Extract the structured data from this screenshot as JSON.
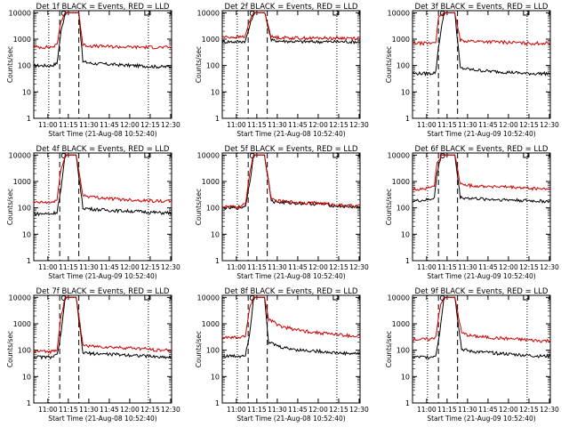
{
  "chart_data": [
    {
      "type": "line",
      "title": "Det 1f BLACK = Events, RED = LLD",
      "xlabel": "Start Time (21-Aug-08 10:52:40)",
      "ylabel": "Counts/sec",
      "x_ticks": [
        "11:00",
        "11:15",
        "11:30",
        "11:45",
        "12:00",
        "12:15",
        "12:30"
      ],
      "x_range_minutes": [
        -3,
        98
      ],
      "y_ticks": [
        "1",
        "10",
        "100",
        "1000",
        "10000"
      ],
      "y_range": [
        1,
        12000
      ],
      "y_scale": "log",
      "vlines_dotted": [
        8,
        81
      ],
      "vlines_dashed": [
        16,
        30
      ],
      "series": [
        {
          "color": "#000000",
          "x": [
            -3,
            10,
            14,
            17,
            20,
            30,
            33,
            40,
            55,
            70,
            80,
            90,
            98
          ],
          "y": [
            100,
            100,
            120,
            2000,
            10000,
            10000,
            140,
            120,
            110,
            100,
            95,
            90,
            90
          ]
        },
        {
          "color": "#cc0000",
          "x": [
            -3,
            10,
            14,
            17,
            20,
            30,
            33,
            40,
            55,
            70,
            80,
            90,
            98
          ],
          "y": [
            500,
            500,
            600,
            5000,
            10000,
            10000,
            600,
            550,
            520,
            500,
            500,
            490,
            490
          ]
        }
      ]
    },
    {
      "type": "line",
      "title": "Det 2f BLACK = Events, RED = LLD",
      "xlabel": "Start Time (21-Aug-08 10:52:40)",
      "ylabel": "Counts/sec",
      "x_ticks": [
        "11:00",
        "11:15",
        "11:30",
        "11:45",
        "12:00",
        "12:15",
        "12:30"
      ],
      "x_range_minutes": [
        -3,
        98
      ],
      "y_ticks": [
        "1",
        "10",
        "100",
        "1000",
        "10000"
      ],
      "y_range": [
        1,
        12000
      ],
      "y_scale": "log",
      "vlines_dotted": [
        8,
        81
      ],
      "vlines_dashed": [
        16,
        30
      ],
      "series": [
        {
          "color": "#000000",
          "x": [
            -3,
            10,
            14,
            17,
            20,
            28,
            33,
            40,
            55,
            70,
            80,
            90,
            98
          ],
          "y": [
            800,
            800,
            850,
            3000,
            10000,
            10000,
            900,
            850,
            800,
            800,
            800,
            800,
            800
          ]
        },
        {
          "color": "#cc0000",
          "x": [
            -3,
            10,
            14,
            17,
            20,
            28,
            33,
            40,
            55,
            70,
            80,
            90,
            98
          ],
          "y": [
            1200,
            1200,
            1300,
            5000,
            10000,
            10000,
            1200,
            1150,
            1100,
            1100,
            1100,
            1100,
            1100
          ]
        }
      ]
    },
    {
      "type": "line",
      "title": "Det 3f BLACK = Events, RED = LLD",
      "xlabel": "Start Time (21-Aug-09 10:52:40)",
      "ylabel": "Counts/sec",
      "x_ticks": [
        "11:00",
        "11:15",
        "11:30",
        "11:45",
        "12:00",
        "12:15",
        "12:30"
      ],
      "x_range_minutes": [
        -3,
        98
      ],
      "y_ticks": [
        "1",
        "10",
        "100",
        "1000",
        "10000"
      ],
      "y_range": [
        1,
        12000
      ],
      "y_scale": "log",
      "vlines_dotted": [
        8,
        81
      ],
      "vlines_dashed": [
        16,
        30
      ],
      "series": [
        {
          "color": "#000000",
          "x": [
            -3,
            10,
            14,
            16,
            20,
            28,
            32,
            40,
            55,
            70,
            80,
            90,
            98
          ],
          "y": [
            50,
            50,
            55,
            500,
            10000,
            10000,
            80,
            70,
            60,
            55,
            50,
            50,
            50
          ]
        },
        {
          "color": "#cc0000",
          "x": [
            -3,
            10,
            14,
            16,
            20,
            28,
            32,
            40,
            55,
            70,
            80,
            90,
            98
          ],
          "y": [
            700,
            700,
            800,
            6000,
            10000,
            10000,
            900,
            850,
            800,
            750,
            700,
            700,
            700
          ]
        }
      ]
    },
    {
      "type": "line",
      "title": "Det 4f BLACK = Events, RED = LLD",
      "xlabel": "Start Time (21-Aug-09 10:52:40)",
      "ylabel": "Counts/sec",
      "x_ticks": [
        "11:00",
        "11:15",
        "11:30",
        "11:45",
        "12:00",
        "12:15",
        "12:30"
      ],
      "x_range_minutes": [
        -3,
        98
      ],
      "y_ticks": [
        "1",
        "10",
        "100",
        "1000",
        "10000"
      ],
      "y_range": [
        1,
        12000
      ],
      "y_scale": "log",
      "vlines_dotted": [
        8,
        81
      ],
      "vlines_dashed": [
        16,
        30
      ],
      "series": [
        {
          "color": "#000000",
          "x": [
            -3,
            10,
            14,
            17,
            20,
            28,
            33,
            40,
            55,
            70,
            80,
            90,
            98
          ],
          "y": [
            60,
            60,
            70,
            500,
            10000,
            10000,
            100,
            90,
            80,
            75,
            70,
            65,
            65
          ]
        },
        {
          "color": "#cc0000",
          "x": [
            -3,
            10,
            14,
            17,
            20,
            28,
            33,
            40,
            55,
            70,
            80,
            90,
            98
          ],
          "y": [
            160,
            160,
            200,
            3000,
            10000,
            10000,
            300,
            260,
            220,
            200,
            190,
            180,
            180
          ]
        }
      ]
    },
    {
      "type": "line",
      "title": "Det 5f BLACK = Events, RED = LLD",
      "xlabel": "Start Time (21-Aug-08 10:52:40)",
      "ylabel": "Counts/sec",
      "x_ticks": [
        "11:00",
        "11:15",
        "11:30",
        "11:45",
        "12:00",
        "12:15",
        "12:30"
      ],
      "x_range_minutes": [
        -3,
        98
      ],
      "y_ticks": [
        "1",
        "10",
        "100",
        "1000",
        "10000"
      ],
      "y_range": [
        1,
        12000
      ],
      "y_scale": "log",
      "vlines_dotted": [
        8,
        81
      ],
      "vlines_dashed": [
        16,
        30
      ],
      "series": [
        {
          "color": "#000000",
          "x": [
            -3,
            10,
            14,
            17,
            20,
            28,
            33,
            40,
            55,
            70,
            80,
            90,
            98
          ],
          "y": [
            100,
            100,
            120,
            800,
            10000,
            10000,
            180,
            160,
            150,
            140,
            120,
            110,
            110
          ]
        },
        {
          "color": "#cc0000",
          "x": [
            -3,
            10,
            14,
            17,
            20,
            28,
            33,
            40,
            55,
            70,
            80,
            90,
            98
          ],
          "y": [
            110,
            110,
            140,
            2000,
            10000,
            10000,
            200,
            180,
            160,
            150,
            130,
            120,
            120
          ]
        }
      ]
    },
    {
      "type": "line",
      "title": "Det 6f BLACK = Events, RED = LLD",
      "xlabel": "Start Time (21-Aug-09 10:52:40)",
      "ylabel": "Counts/sec",
      "x_ticks": [
        "11:00",
        "11:15",
        "11:30",
        "11:45",
        "12:00",
        "12:15",
        "12:30"
      ],
      "x_range_minutes": [
        -3,
        98
      ],
      "y_ticks": [
        "1",
        "10",
        "100",
        "1000",
        "10000"
      ],
      "y_range": [
        1,
        12000
      ],
      "y_scale": "log",
      "vlines_dotted": [
        8,
        81
      ],
      "vlines_dashed": [
        16,
        30
      ],
      "series": [
        {
          "color": "#000000",
          "x": [
            -3,
            8,
            10,
            13,
            15,
            18,
            28,
            32,
            40,
            55,
            70,
            80,
            90,
            98
          ],
          "y": [
            180,
            200,
            210,
            250,
            2000,
            10000,
            10000,
            250,
            230,
            210,
            200,
            190,
            180,
            180
          ]
        },
        {
          "color": "#cc0000",
          "x": [
            -3,
            8,
            10,
            13,
            15,
            18,
            28,
            32,
            40,
            55,
            70,
            80,
            90,
            98
          ],
          "y": [
            500,
            550,
            600,
            700,
            5000,
            10000,
            10000,
            800,
            700,
            650,
            600,
            560,
            530,
            520
          ]
        }
      ]
    },
    {
      "type": "line",
      "title": "Det 7f BLACK = Events, RED = LLD",
      "xlabel": "Start Time (21-Aug-08 10:52:40)",
      "ylabel": "Counts/sec",
      "x_ticks": [
        "11:00",
        "11:15",
        "11:30",
        "11:45",
        "12:00",
        "12:15",
        "12:30"
      ],
      "x_range_minutes": [
        -3,
        98
      ],
      "y_ticks": [
        "1",
        "10",
        "100",
        "1000",
        "10000"
      ],
      "y_range": [
        1,
        12000
      ],
      "y_scale": "log",
      "vlines_dotted": [
        8,
        81
      ],
      "vlines_dashed": [
        16,
        30
      ],
      "series": [
        {
          "color": "#000000",
          "x": [
            -3,
            10,
            14,
            17,
            20,
            28,
            33,
            40,
            55,
            70,
            80,
            90,
            98
          ],
          "y": [
            55,
            55,
            65,
            400,
            10000,
            10000,
            80,
            75,
            70,
            65,
            60,
            55,
            55
          ]
        },
        {
          "color": "#cc0000",
          "x": [
            -3,
            10,
            14,
            17,
            20,
            28,
            33,
            40,
            55,
            70,
            80,
            90,
            98
          ],
          "y": [
            90,
            90,
            110,
            2000,
            10000,
            10000,
            160,
            140,
            130,
            120,
            110,
            100,
            100
          ]
        }
      ]
    },
    {
      "type": "line",
      "title": "Det 8f BLACK = Events, RED = LLD",
      "xlabel": "Start Time (21-Aug-08 10:52:40)",
      "ylabel": "Counts/sec",
      "x_ticks": [
        "11:00",
        "11:15",
        "11:30",
        "11:45",
        "12:00",
        "12:15",
        "12:30"
      ],
      "x_range_minutes": [
        -3,
        98
      ],
      "y_ticks": [
        "1",
        "10",
        "100",
        "1000",
        "10000"
      ],
      "y_range": [
        1,
        12000
      ],
      "y_scale": "log",
      "vlines_dotted": [
        8,
        81
      ],
      "vlines_dashed": [
        16,
        30
      ],
      "series": [
        {
          "color": "#000000",
          "x": [
            -3,
            10,
            14,
            17,
            20,
            28,
            31,
            40,
            55,
            70,
            80,
            90,
            98
          ],
          "y": [
            60,
            60,
            70,
            400,
            10000,
            10000,
            200,
            130,
            100,
            90,
            80,
            75,
            75
          ]
        },
        {
          "color": "#cc0000",
          "x": [
            -3,
            10,
            14,
            17,
            20,
            28,
            31,
            40,
            55,
            70,
            80,
            90,
            98
          ],
          "y": [
            300,
            300,
            350,
            4000,
            10000,
            10000,
            1500,
            800,
            550,
            450,
            400,
            350,
            340
          ]
        }
      ]
    },
    {
      "type": "line",
      "title": "Det 9f BLACK = Events, RED = LLD",
      "xlabel": "Start Time (21-Aug-09 10:52:40)",
      "ylabel": "Counts/sec",
      "x_ticks": [
        "11:00",
        "11:15",
        "11:30",
        "11:45",
        "12:00",
        "12:15",
        "12:30"
      ],
      "x_range_minutes": [
        -3,
        98
      ],
      "y_ticks": [
        "1",
        "10",
        "100",
        "1000",
        "10000"
      ],
      "y_range": [
        1,
        12000
      ],
      "y_scale": "log",
      "vlines_dotted": [
        8,
        81
      ],
      "vlines_dashed": [
        16,
        30
      ],
      "series": [
        {
          "color": "#000000",
          "x": [
            -3,
            10,
            14,
            17,
            20,
            28,
            33,
            40,
            55,
            70,
            80,
            90,
            98
          ],
          "y": [
            55,
            55,
            65,
            500,
            10000,
            10000,
            110,
            90,
            80,
            70,
            65,
            60,
            60
          ]
        },
        {
          "color": "#cc0000",
          "x": [
            -3,
            10,
            14,
            17,
            20,
            28,
            33,
            40,
            55,
            70,
            80,
            90,
            98
          ],
          "y": [
            260,
            260,
            320,
            4000,
            10000,
            10000,
            450,
            350,
            300,
            270,
            250,
            230,
            230
          ]
        }
      ]
    }
  ]
}
